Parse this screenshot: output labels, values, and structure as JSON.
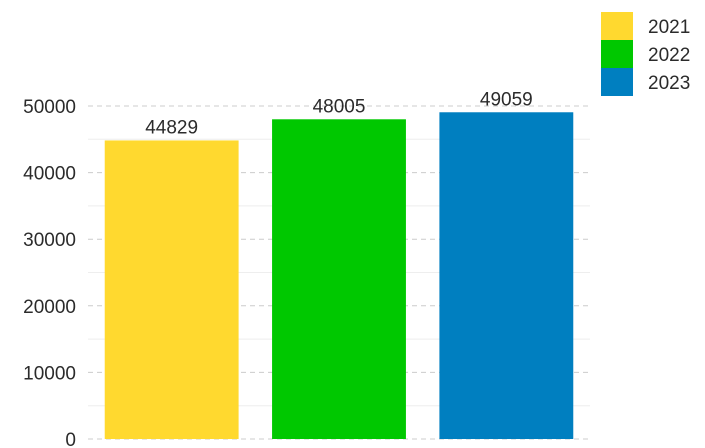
{
  "chart_data": {
    "type": "bar",
    "categories": [
      "2021",
      "2022",
      "2023"
    ],
    "values": [
      44829,
      48005,
      49059
    ],
    "colors": [
      "#ffd92f",
      "#00c800",
      "#007fc0"
    ],
    "ylim": [
      0,
      50000
    ],
    "yticks": [
      0,
      10000,
      20000,
      30000,
      40000,
      50000
    ],
    "ytick_labels": [
      "0",
      "10000",
      "20000",
      "30000",
      "40000",
      "50000"
    ],
    "grid": true,
    "legend": {
      "placement": "top-right",
      "entries": [
        "2021",
        "2022",
        "2023"
      ]
    },
    "title": "",
    "xlabel": "",
    "ylabel": ""
  }
}
